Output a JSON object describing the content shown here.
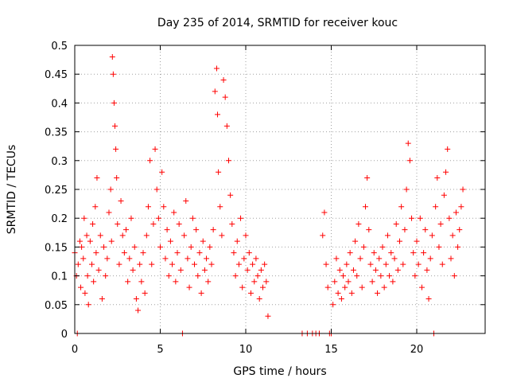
{
  "chart_data": {
    "type": "scatter",
    "title": "Day 235 of 2014, SRMTID for receiver kouc",
    "xlabel": "GPS time / hours",
    "ylabel": "SRMTID / TECUs",
    "xlim": [
      0,
      24
    ],
    "ylim": [
      0,
      0.5
    ],
    "x_ticks": [
      0,
      5,
      10,
      15,
      20
    ],
    "x_tick_labels": [
      "0",
      "5",
      "10",
      "15",
      "20"
    ],
    "y_ticks": [
      0,
      0.05,
      0.1,
      0.15,
      0.2,
      0.25,
      0.3,
      0.35,
      0.4,
      0.45,
      0.5
    ],
    "y_tick_labels": [
      "0",
      "0.05",
      "0.1",
      "0.15",
      "0.2",
      "0.25",
      "0.3",
      "0.35",
      "0.4",
      "0.45",
      "0.5"
    ],
    "grid": true,
    "marker": "+",
    "series": [
      {
        "name": "SRMTID",
        "color": "#ff0000",
        "points": [
          [
            0.0,
            0.14
          ],
          [
            0.1,
            0.1
          ],
          [
            0.15,
            0.0
          ],
          [
            0.2,
            0.12
          ],
          [
            0.3,
            0.16
          ],
          [
            0.35,
            0.08
          ],
          [
            0.4,
            0.15
          ],
          [
            0.5,
            0.13
          ],
          [
            0.55,
            0.2
          ],
          [
            0.6,
            0.07
          ],
          [
            0.7,
            0.17
          ],
          [
            0.75,
            0.1
          ],
          [
            0.8,
            0.05
          ],
          [
            0.9,
            0.16
          ],
          [
            1.0,
            0.12
          ],
          [
            1.05,
            0.19
          ],
          [
            1.1,
            0.09
          ],
          [
            1.2,
            0.22
          ],
          [
            1.25,
            0.14
          ],
          [
            1.3,
            0.27
          ],
          [
            1.4,
            0.11
          ],
          [
            1.5,
            0.17
          ],
          [
            1.6,
            0.06
          ],
          [
            1.7,
            0.15
          ],
          [
            1.8,
            0.1
          ],
          [
            1.9,
            0.13
          ],
          [
            2.0,
            0.21
          ],
          [
            2.1,
            0.25
          ],
          [
            2.15,
            0.16
          ],
          [
            2.2,
            0.48
          ],
          [
            2.25,
            0.45
          ],
          [
            2.3,
            0.4
          ],
          [
            2.35,
            0.36
          ],
          [
            2.4,
            0.32
          ],
          [
            2.45,
            0.27
          ],
          [
            2.5,
            0.19
          ],
          [
            2.6,
            0.12
          ],
          [
            2.7,
            0.23
          ],
          [
            2.8,
            0.17
          ],
          [
            2.9,
            0.14
          ],
          [
            3.0,
            0.18
          ],
          [
            3.1,
            0.09
          ],
          [
            3.2,
            0.13
          ],
          [
            3.3,
            0.2
          ],
          [
            3.4,
            0.11
          ],
          [
            3.5,
            0.15
          ],
          [
            3.6,
            0.06
          ],
          [
            3.7,
            0.04
          ],
          [
            3.8,
            0.12
          ],
          [
            3.9,
            0.09
          ],
          [
            4.0,
            0.14
          ],
          [
            4.1,
            0.07
          ],
          [
            4.2,
            0.17
          ],
          [
            4.3,
            0.22
          ],
          [
            4.4,
            0.3
          ],
          [
            4.5,
            0.12
          ],
          [
            4.6,
            0.19
          ],
          [
            4.7,
            0.32
          ],
          [
            4.8,
            0.25
          ],
          [
            4.9,
            0.2
          ],
          [
            5.0,
            0.15
          ],
          [
            5.1,
            0.28
          ],
          [
            5.2,
            0.22
          ],
          [
            5.3,
            0.13
          ],
          [
            5.4,
            0.18
          ],
          [
            5.5,
            0.1
          ],
          [
            5.6,
            0.16
          ],
          [
            5.7,
            0.12
          ],
          [
            5.8,
            0.21
          ],
          [
            5.9,
            0.09
          ],
          [
            6.0,
            0.14
          ],
          [
            6.1,
            0.19
          ],
          [
            6.2,
            0.11
          ],
          [
            6.3,
            0.0
          ],
          [
            6.4,
            0.17
          ],
          [
            6.5,
            0.23
          ],
          [
            6.6,
            0.13
          ],
          [
            6.7,
            0.08
          ],
          [
            6.8,
            0.15
          ],
          [
            6.9,
            0.2
          ],
          [
            7.0,
            0.12
          ],
          [
            7.1,
            0.18
          ],
          [
            7.2,
            0.1
          ],
          [
            7.3,
            0.14
          ],
          [
            7.4,
            0.07
          ],
          [
            7.5,
            0.16
          ],
          [
            7.6,
            0.11
          ],
          [
            7.7,
            0.13
          ],
          [
            7.8,
            0.09
          ],
          [
            7.9,
            0.15
          ],
          [
            8.0,
            0.12
          ],
          [
            8.1,
            0.18
          ],
          [
            8.2,
            0.42
          ],
          [
            8.3,
            0.46
          ],
          [
            8.35,
            0.38
          ],
          [
            8.4,
            0.28
          ],
          [
            8.5,
            0.22
          ],
          [
            8.6,
            0.17
          ],
          [
            8.7,
            0.44
          ],
          [
            8.8,
            0.41
          ],
          [
            8.9,
            0.36
          ],
          [
            9.0,
            0.3
          ],
          [
            9.1,
            0.24
          ],
          [
            9.2,
            0.19
          ],
          [
            9.3,
            0.14
          ],
          [
            9.4,
            0.1
          ],
          [
            9.5,
            0.16
          ],
          [
            9.6,
            0.12
          ],
          [
            9.7,
            0.2
          ],
          [
            9.8,
            0.08
          ],
          [
            9.9,
            0.13
          ],
          [
            10.0,
            0.17
          ],
          [
            10.1,
            0.11
          ],
          [
            10.2,
            0.14
          ],
          [
            10.3,
            0.07
          ],
          [
            10.4,
            0.12
          ],
          [
            10.5,
            0.09
          ],
          [
            10.6,
            0.13
          ],
          [
            10.7,
            0.1
          ],
          [
            10.8,
            0.06
          ],
          [
            10.9,
            0.11
          ],
          [
            11.0,
            0.08
          ],
          [
            11.1,
            0.12
          ],
          [
            11.2,
            0.09
          ],
          [
            11.3,
            0.03
          ],
          [
            13.3,
            0.0
          ],
          [
            13.6,
            0.0
          ],
          [
            13.9,
            0.0
          ],
          [
            14.1,
            0.0
          ],
          [
            14.3,
            0.0
          ],
          [
            14.5,
            0.17
          ],
          [
            14.6,
            0.21
          ],
          [
            14.7,
            0.12
          ],
          [
            14.8,
            0.08
          ],
          [
            14.9,
            0.0
          ],
          [
            15.0,
            0.0
          ],
          [
            15.1,
            0.05
          ],
          [
            15.2,
            0.09
          ],
          [
            15.3,
            0.13
          ],
          [
            15.4,
            0.07
          ],
          [
            15.5,
            0.11
          ],
          [
            15.6,
            0.06
          ],
          [
            15.7,
            0.1
          ],
          [
            15.8,
            0.08
          ],
          [
            15.9,
            0.12
          ],
          [
            16.0,
            0.09
          ],
          [
            16.1,
            0.14
          ],
          [
            16.2,
            0.07
          ],
          [
            16.3,
            0.11
          ],
          [
            16.4,
            0.16
          ],
          [
            16.5,
            0.1
          ],
          [
            16.6,
            0.19
          ],
          [
            16.7,
            0.13
          ],
          [
            16.8,
            0.08
          ],
          [
            16.9,
            0.15
          ],
          [
            17.0,
            0.22
          ],
          [
            17.1,
            0.27
          ],
          [
            17.2,
            0.18
          ],
          [
            17.3,
            0.12
          ],
          [
            17.4,
            0.09
          ],
          [
            17.5,
            0.14
          ],
          [
            17.6,
            0.11
          ],
          [
            17.7,
            0.07
          ],
          [
            17.8,
            0.13
          ],
          [
            17.9,
            0.1
          ],
          [
            18.0,
            0.15
          ],
          [
            18.1,
            0.08
          ],
          [
            18.2,
            0.12
          ],
          [
            18.3,
            0.17
          ],
          [
            18.4,
            0.1
          ],
          [
            18.5,
            0.14
          ],
          [
            18.6,
            0.09
          ],
          [
            18.7,
            0.13
          ],
          [
            18.8,
            0.19
          ],
          [
            18.9,
            0.11
          ],
          [
            19.0,
            0.16
          ],
          [
            19.1,
            0.22
          ],
          [
            19.2,
            0.12
          ],
          [
            19.3,
            0.18
          ],
          [
            19.4,
            0.25
          ],
          [
            19.5,
            0.33
          ],
          [
            19.6,
            0.3
          ],
          [
            19.7,
            0.2
          ],
          [
            19.8,
            0.14
          ],
          [
            19.9,
            0.1
          ],
          [
            20.0,
            0.16
          ],
          [
            20.1,
            0.12
          ],
          [
            20.2,
            0.2
          ],
          [
            20.3,
            0.08
          ],
          [
            20.4,
            0.14
          ],
          [
            20.5,
            0.18
          ],
          [
            20.6,
            0.11
          ],
          [
            20.7,
            0.06
          ],
          [
            20.8,
            0.13
          ],
          [
            20.9,
            0.17
          ],
          [
            21.0,
            0.0
          ],
          [
            21.1,
            0.22
          ],
          [
            21.2,
            0.27
          ],
          [
            21.3,
            0.15
          ],
          [
            21.4,
            0.19
          ],
          [
            21.5,
            0.12
          ],
          [
            21.6,
            0.24
          ],
          [
            21.7,
            0.28
          ],
          [
            21.8,
            0.32
          ],
          [
            21.9,
            0.2
          ],
          [
            22.0,
            0.13
          ],
          [
            22.1,
            0.17
          ],
          [
            22.2,
            0.1
          ],
          [
            22.3,
            0.21
          ],
          [
            22.4,
            0.15
          ],
          [
            22.5,
            0.18
          ],
          [
            22.6,
            0.22
          ],
          [
            22.7,
            0.25
          ]
        ]
      }
    ]
  }
}
